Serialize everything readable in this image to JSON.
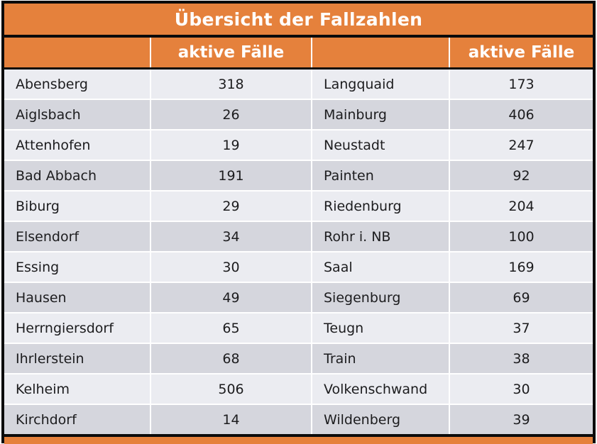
{
  "title": "Übersicht der Fallzahlen",
  "header": {
    "labels": [
      "",
      "aktive Fälle",
      "",
      "aktive Fälle"
    ]
  },
  "chart_data": {
    "type": "table",
    "title": "Übersicht der Fallzahlen",
    "column_headers": [
      "",
      "aktive Fälle",
      "",
      "aktive Fälle"
    ],
    "rows": [
      [
        "Abensberg",
        318,
        "Langquaid",
        173
      ],
      [
        "Aiglsbach",
        26,
        "Mainburg",
        406
      ],
      [
        "Attenhofen",
        19,
        "Neustadt",
        247
      ],
      [
        "Bad Abbach",
        191,
        "Painten",
        92
      ],
      [
        "Biburg",
        29,
        "Riedenburg",
        204
      ],
      [
        "Elsendorf",
        34,
        "Rohr i. NB",
        100
      ],
      [
        "Essing",
        30,
        "Saal",
        169
      ],
      [
        "Hausen",
        49,
        "Siegenburg",
        69
      ],
      [
        "Herrngiersdorf",
        65,
        "Teugn",
        37
      ],
      [
        "Ihrlerstein",
        68,
        "Train",
        38
      ],
      [
        "Kelheim",
        506,
        "Volkenschwand",
        30
      ],
      [
        "Kirchdorf",
        14,
        "Wildenberg",
        39
      ]
    ]
  },
  "colors": {
    "accent_orange": "#E5813C",
    "row_light": "#EBECF1",
    "row_dark": "#D5D6DD",
    "border_black": "#0B0B0B",
    "header_text": "#FFFFFF",
    "body_text": "#1C1C1E"
  }
}
